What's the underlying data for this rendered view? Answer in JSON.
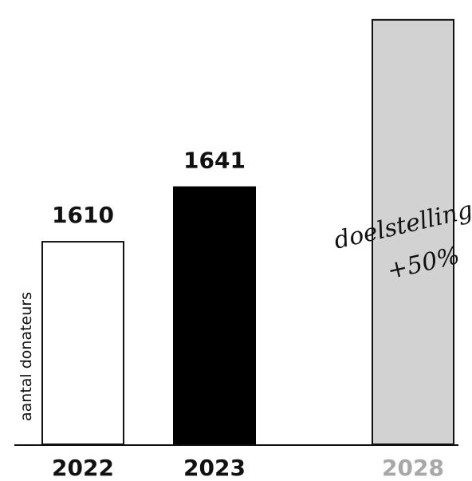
{
  "chart_data": {
    "type": "bar",
    "ylabel": "aantal donateurs",
    "categories": [
      "2022",
      "2023",
      "2028"
    ],
    "values": [
      1610,
      1641,
      1736
    ],
    "value_labels": [
      "1610",
      "1641",
      ""
    ],
    "series_styles": [
      "outline",
      "filled",
      "target"
    ],
    "annotation": {
      "line1": "doelstelling",
      "line2": "+50%"
    },
    "ylim": [
      1495,
      1740
    ],
    "colors": {
      "filled": "#000000",
      "outline": "#ffffff",
      "stroke": "#111111",
      "target_fill": "#d2d2d2",
      "target_label": "#a8a8a8",
      "text": "#111111"
    }
  }
}
